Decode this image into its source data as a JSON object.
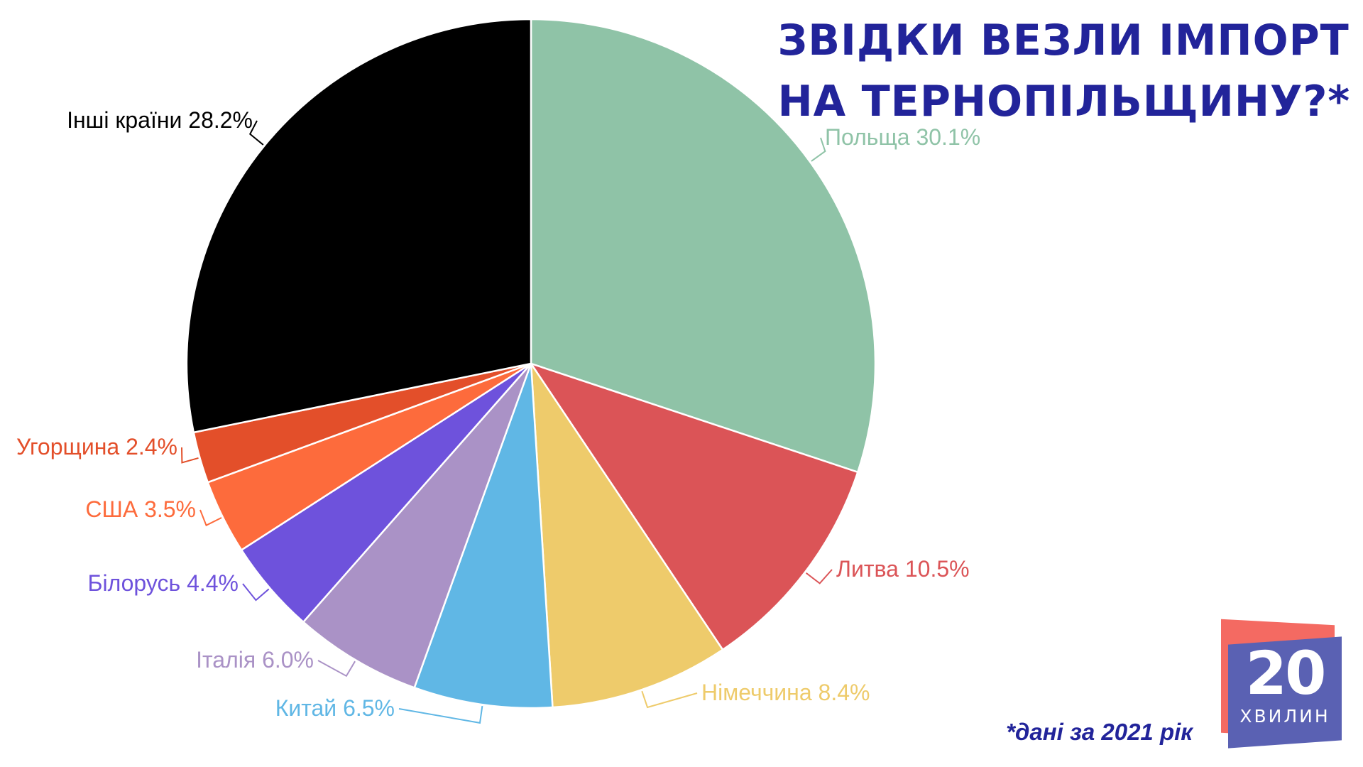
{
  "title": {
    "line1": "ЗВІДКИ ВЕЗЛИ ІМПОРТ",
    "line2": "НА ТЕРНОПІЛЬЩИНУ?*"
  },
  "footnote": "*дані за 2021 рік",
  "logo": {
    "number": "20",
    "word": "ХВИЛИН",
    "colors": {
      "back": "#f46a62",
      "front": "#5a61b3"
    }
  },
  "colors": {
    "title": "#22249a",
    "slice_border": "#ffffff"
  },
  "chart_data": {
    "type": "pie",
    "title": "ЗВІДКИ ВЕЗЛИ ІМПОРТ НА ТЕРНОПІЛЬЩИНУ?*",
    "slices": [
      {
        "name": "Польща",
        "value": 30.1,
        "label": "Польща 30.1%",
        "color": "#8fc3a7",
        "label_color": "#8fc3a7"
      },
      {
        "name": "Литва",
        "value": 10.5,
        "label": "Литва 10.5%",
        "color": "#db5457",
        "label_color": "#db5457"
      },
      {
        "name": "Німеччина",
        "value": 8.4,
        "label": "Німеччина 8.4%",
        "color": "#eecb6b",
        "label_color": "#eecb6b"
      },
      {
        "name": "Китай",
        "value": 6.5,
        "label": "Китай 6.5%",
        "color": "#60b7e5",
        "label_color": "#60b7e5"
      },
      {
        "name": "Італія",
        "value": 6.0,
        "label": "Італія 6.0%",
        "color": "#aa92c6",
        "label_color": "#aa92c6"
      },
      {
        "name": "Білорусь",
        "value": 4.4,
        "label": "Білорусь 4.4%",
        "color": "#6e52dc",
        "label_color": "#6e52dc"
      },
      {
        "name": "США",
        "value": 3.5,
        "label": "США 3.5%",
        "color": "#fd6b3c",
        "label_color": "#fd6b3c"
      },
      {
        "name": "Угорщина",
        "value": 2.4,
        "label": "Угорщина 2.4%",
        "color": "#e34f2a",
        "label_color": "#e34f2a"
      },
      {
        "name": "Інші країни",
        "value": 28.2,
        "label": "Інші країни 28.2%",
        "color": "#000000",
        "label_color": "#000000"
      }
    ],
    "start_angle_deg": 0,
    "direction": "clockwise",
    "legend": "none",
    "labels": "outside with leader lines"
  }
}
